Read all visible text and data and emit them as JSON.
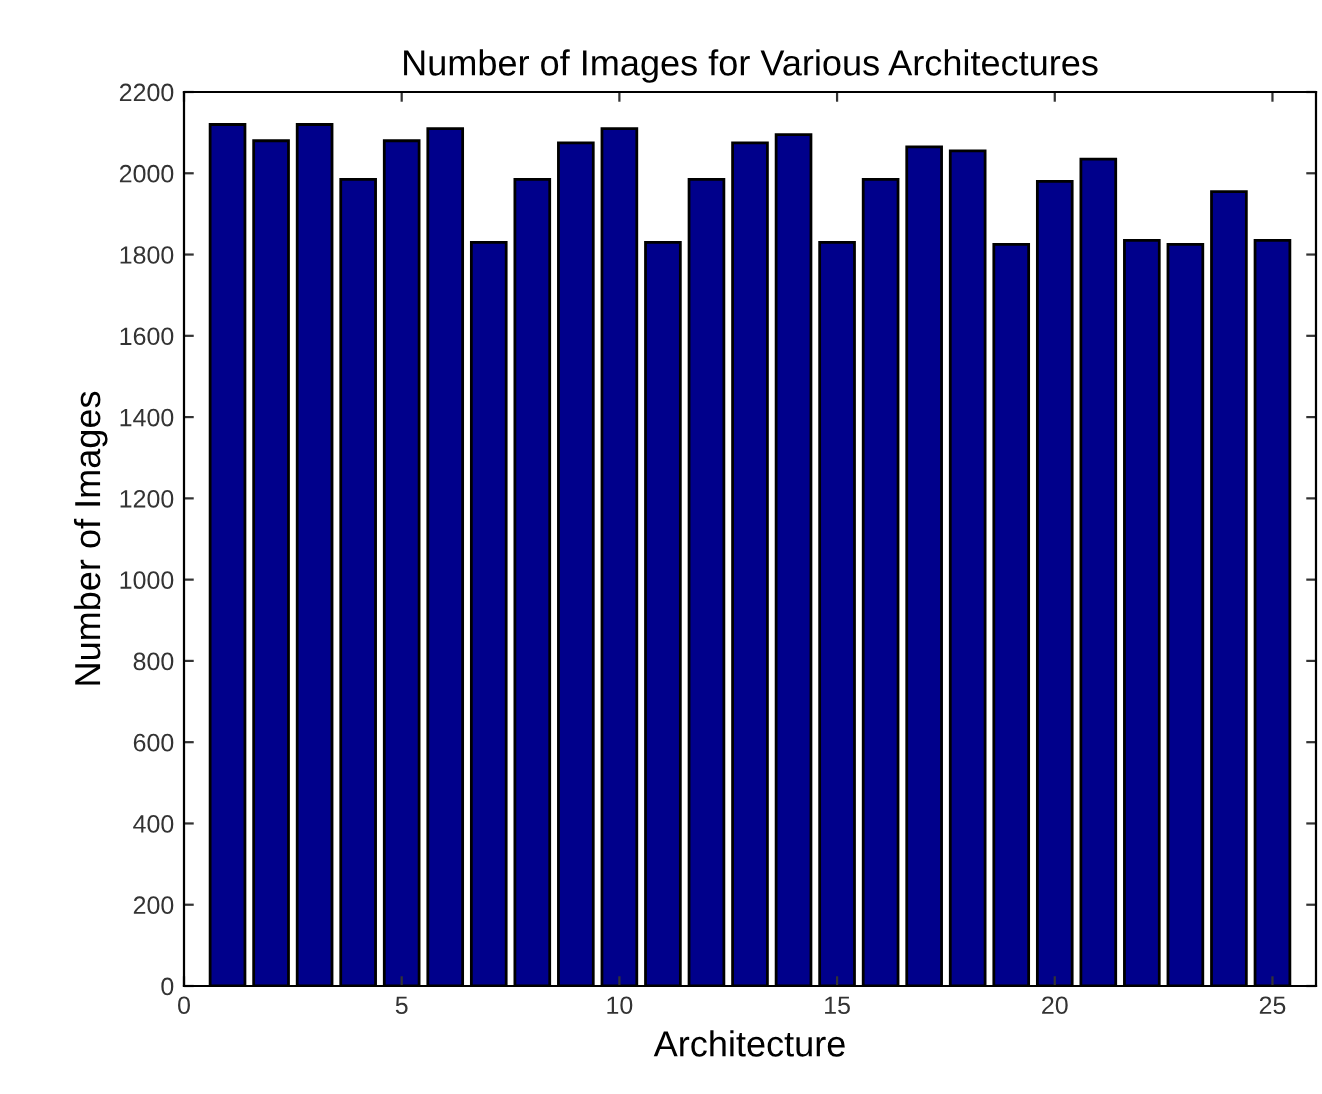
{
  "chart_data": {
    "type": "bar",
    "title": "Number of Images for Various Architectures",
    "xlabel": "Architecture",
    "ylabel": "Number of Images",
    "x": [
      1,
      2,
      3,
      4,
      5,
      6,
      7,
      8,
      9,
      10,
      11,
      12,
      13,
      14,
      15,
      16,
      17,
      18,
      19,
      20,
      21,
      22,
      23,
      24,
      25
    ],
    "values": [
      2120,
      2080,
      2120,
      1985,
      2080,
      2110,
      1830,
      1985,
      2075,
      2110,
      1830,
      1985,
      2075,
      2095,
      1830,
      1985,
      2065,
      2055,
      1825,
      1980,
      2035,
      1835,
      1825,
      1955,
      1835
    ],
    "color": "#00008b",
    "xlim": [
      0,
      26
    ],
    "xticks": [
      0,
      5,
      10,
      15,
      20,
      25
    ],
    "ylim": [
      0,
      2200
    ],
    "yticks": [
      0,
      200,
      400,
      600,
      800,
      1000,
      1200,
      1400,
      1600,
      1800,
      2000,
      2200
    ],
    "grid": false
  }
}
